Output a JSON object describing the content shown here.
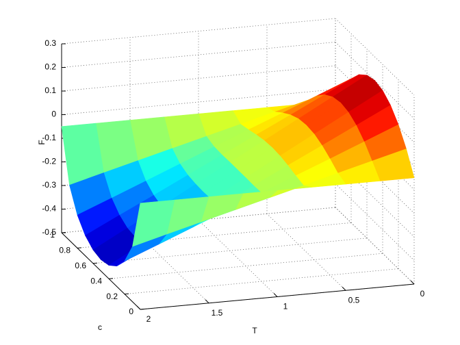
{
  "chart_data": {
    "type": "surface",
    "xlabel": "T",
    "ylabel": "c",
    "zlabel": "F",
    "T": [
      0,
      0.25,
      0.5,
      0.75,
      1,
      1.25,
      1.5,
      1.75,
      2
    ],
    "c": [
      0,
      0.1,
      0.2,
      0.3,
      0.4,
      0.5,
      0.6,
      0.7,
      0.8,
      0.9,
      1
    ],
    "z": [
      [
        -0.05,
        0.04,
        0.11,
        0.16,
        0.19,
        0.2,
        0.19,
        0.16,
        0.11,
        0.04,
        -0.05
      ],
      [
        -0.05,
        0.002,
        0.051,
        0.088,
        0.111,
        0.119,
        0.111,
        0.088,
        0.051,
        0.002,
        -0.05
      ],
      [
        -0.05,
        -0.036,
        -0.008,
        0.016,
        0.032,
        0.037,
        0.032,
        0.016,
        -0.008,
        -0.036,
        -0.05
      ],
      [
        -0.05,
        -0.075,
        -0.066,
        -0.055,
        -0.047,
        -0.044,
        -0.047,
        -0.055,
        -0.066,
        -0.075,
        -0.05
      ],
      [
        -0.05,
        -0.113,
        -0.125,
        -0.127,
        -0.126,
        -0.126,
        -0.126,
        -0.127,
        -0.125,
        -0.113,
        -0.05
      ],
      [
        -0.05,
        -0.151,
        -0.184,
        -0.199,
        -0.205,
        -0.207,
        -0.205,
        -0.199,
        -0.184,
        -0.151,
        -0.05
      ],
      [
        -0.05,
        -0.189,
        -0.243,
        -0.271,
        -0.285,
        -0.289,
        -0.285,
        -0.271,
        -0.243,
        -0.189,
        -0.05
      ],
      [
        -0.05,
        -0.227,
        -0.302,
        -0.342,
        -0.364,
        -0.37,
        -0.364,
        -0.342,
        -0.302,
        -0.227,
        -0.05
      ],
      [
        -0.05,
        -0.266,
        -0.36,
        -0.414,
        -0.443,
        -0.452,
        -0.443,
        -0.414,
        -0.36,
        -0.266,
        -0.05
      ]
    ],
    "xlim": [
      0,
      2
    ],
    "xticks": [
      0,
      0.5,
      1,
      1.5,
      2
    ],
    "ylim": [
      0,
      1
    ],
    "yticks": [
      0,
      0.2,
      0.4,
      0.6,
      0.8,
      1
    ],
    "zlim": [
      -0.5,
      0.3
    ],
    "zticks": [
      -0.5,
      -0.4,
      -0.3,
      -0.2,
      -0.1,
      0,
      0.1,
      0.2,
      0.3
    ],
    "colormap": "jet",
    "grid": true
  }
}
